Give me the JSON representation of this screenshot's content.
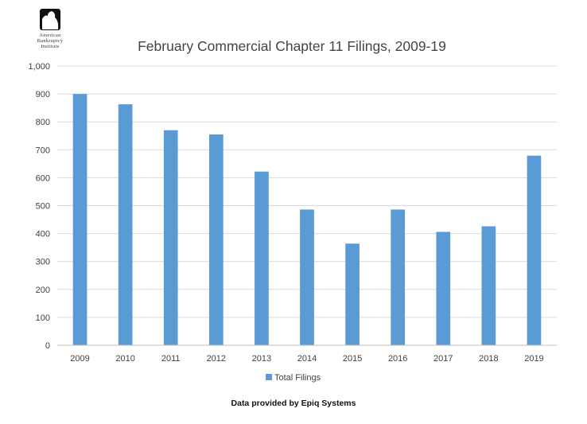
{
  "logo": {
    "lines": [
      "American",
      "Bankruptcy",
      "Institute"
    ]
  },
  "source": "Data provided by Epiq Systems",
  "chart_data": {
    "type": "bar",
    "title": "February Commercial Chapter 11 Filings, 2009-19",
    "xlabel": "",
    "ylabel": "",
    "categories": [
      "2009",
      "2010",
      "2011",
      "2012",
      "2013",
      "2014",
      "2015",
      "2016",
      "2017",
      "2018",
      "2019"
    ],
    "series": [
      {
        "name": "Total Filings",
        "values": [
          900,
          863,
          770,
          755,
          622,
          486,
          364,
          486,
          406,
          426,
          679
        ]
      }
    ],
    "ylim": [
      0,
      1000
    ],
    "yticks": [
      0,
      100,
      200,
      300,
      400,
      500,
      600,
      700,
      800,
      900,
      1000
    ],
    "ytick_labels": [
      "0",
      "100",
      "200",
      "300",
      "400",
      "500",
      "600",
      "700",
      "800",
      "900",
      "1,000"
    ],
    "grid": true,
    "legend": "bottom",
    "colors": {
      "bar": "#5b9bd5",
      "grid": "#d9d9d9",
      "axis": "#bfbfbf"
    }
  }
}
